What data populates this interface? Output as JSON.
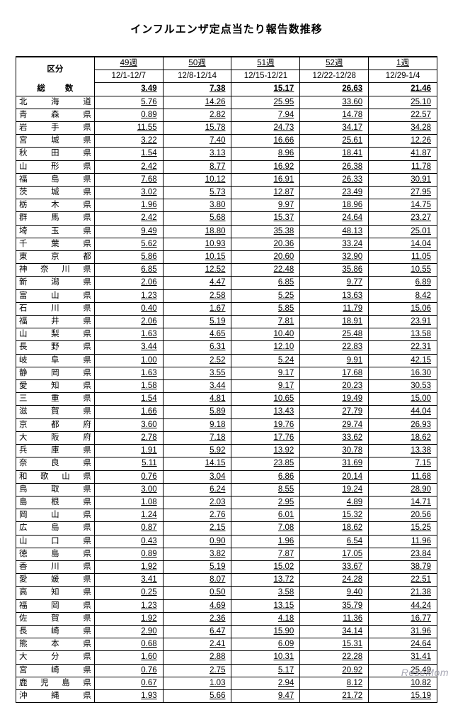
{
  "title": "インフルエンザ定点当たり報告数推移",
  "header": {
    "kubun": "区分",
    "weeks": [
      "49週",
      "50週",
      "51週",
      "52週",
      "1週"
    ],
    "ranges": [
      "12/1-12/7",
      "12/8-12/14",
      "12/15-12/21",
      "12/22-12/28",
      "12/29-1/4"
    ]
  },
  "total": {
    "label_a": "総",
    "label_b": "数",
    "vals": [
      "3.49",
      "7.38",
      "15.17",
      "26.63",
      "21.46"
    ]
  },
  "rows": [
    {
      "chars": [
        "北",
        "海",
        "道"
      ],
      "vals": [
        "5.76",
        "14.26",
        "25.95",
        "33.60",
        "25.10"
      ]
    },
    {
      "chars": [
        "青",
        "森",
        "県"
      ],
      "vals": [
        "0.89",
        "2.82",
        "7.94",
        "14.78",
        "22.57"
      ]
    },
    {
      "chars": [
        "岩",
        "手",
        "県"
      ],
      "vals": [
        "11.55",
        "15.78",
        "24.73",
        "34.17",
        "34.28"
      ]
    },
    {
      "chars": [
        "宮",
        "城",
        "県"
      ],
      "vals": [
        "3.22",
        "7.40",
        "16.66",
        "25.61",
        "12.26"
      ]
    },
    {
      "chars": [
        "秋",
        "田",
        "県"
      ],
      "vals": [
        "1.54",
        "3.13",
        "8.96",
        "18.41",
        "41.87"
      ]
    },
    {
      "chars": [
        "山",
        "形",
        "県"
      ],
      "vals": [
        "2.42",
        "8.77",
        "16.92",
        "26.38",
        "11.78"
      ]
    },
    {
      "chars": [
        "福",
        "島",
        "県"
      ],
      "vals": [
        "7.68",
        "10.12",
        "16.91",
        "26.33",
        "30.91"
      ]
    },
    {
      "chars": [
        "茨",
        "城",
        "県"
      ],
      "vals": [
        "3.02",
        "5.73",
        "12.87",
        "23.49",
        "27.95"
      ]
    },
    {
      "chars": [
        "栃",
        "木",
        "県"
      ],
      "vals": [
        "1.96",
        "3.80",
        "9.97",
        "18.96",
        "14.75"
      ]
    },
    {
      "chars": [
        "群",
        "馬",
        "県"
      ],
      "vals": [
        "2.42",
        "5.68",
        "15.37",
        "24.64",
        "23.27"
      ]
    },
    {
      "chars": [
        "埼",
        "玉",
        "県"
      ],
      "vals": [
        "9.49",
        "18.80",
        "35.38",
        "48.13",
        "25.01"
      ]
    },
    {
      "chars": [
        "千",
        "葉",
        "県"
      ],
      "vals": [
        "5.62",
        "10.93",
        "20.36",
        "33.24",
        "14.04"
      ]
    },
    {
      "chars": [
        "東",
        "京",
        "都"
      ],
      "vals": [
        "5.86",
        "10.15",
        "20.60",
        "32.90",
        "11.05"
      ]
    },
    {
      "chars": [
        "神",
        "奈",
        "川",
        "県"
      ],
      "vals": [
        "6.85",
        "12.52",
        "22.48",
        "35.86",
        "10.55"
      ]
    },
    {
      "chars": [
        "新",
        "潟",
        "県"
      ],
      "vals": [
        "2.06",
        "4.47",
        "6.85",
        "9.77",
        "6.89"
      ]
    },
    {
      "chars": [
        "富",
        "山",
        "県"
      ],
      "vals": [
        "1.23",
        "2.58",
        "5.25",
        "13.63",
        "8.42"
      ]
    },
    {
      "chars": [
        "石",
        "川",
        "県"
      ],
      "vals": [
        "0.40",
        "1.67",
        "5.85",
        "11.79",
        "15.06"
      ]
    },
    {
      "chars": [
        "福",
        "井",
        "県"
      ],
      "vals": [
        "2.06",
        "5.19",
        "7.81",
        "18.91",
        "23.91"
      ]
    },
    {
      "chars": [
        "山",
        "梨",
        "県"
      ],
      "vals": [
        "1.63",
        "4.65",
        "10.40",
        "25.48",
        "13.58"
      ]
    },
    {
      "chars": [
        "長",
        "野",
        "県"
      ],
      "vals": [
        "3.44",
        "6.31",
        "12.10",
        "22.83",
        "22.31"
      ]
    },
    {
      "chars": [
        "岐",
        "阜",
        "県"
      ],
      "vals": [
        "1.00",
        "2.52",
        "5.24",
        "9.91",
        "42.15"
      ]
    },
    {
      "chars": [
        "静",
        "岡",
        "県"
      ],
      "vals": [
        "1.63",
        "3.55",
        "9.17",
        "17.68",
        "16.30"
      ]
    },
    {
      "chars": [
        "愛",
        "知",
        "県"
      ],
      "vals": [
        "1.58",
        "3.44",
        "9.17",
        "20.23",
        "30.53"
      ]
    },
    {
      "chars": [
        "三",
        "重",
        "県"
      ],
      "vals": [
        "1.54",
        "4.81",
        "10.65",
        "19.49",
        "15.00"
      ]
    },
    {
      "chars": [
        "滋",
        "賀",
        "県"
      ],
      "vals": [
        "1.66",
        "5.89",
        "13.43",
        "27.79",
        "44.04"
      ]
    },
    {
      "chars": [
        "京",
        "都",
        "府"
      ],
      "vals": [
        "3.60",
        "9.18",
        "19.76",
        "29.74",
        "26.93"
      ]
    },
    {
      "chars": [
        "大",
        "阪",
        "府"
      ],
      "vals": [
        "2.78",
        "7.18",
        "17.76",
        "33.62",
        "18.62"
      ]
    },
    {
      "chars": [
        "兵",
        "庫",
        "県"
      ],
      "vals": [
        "1.91",
        "5.92",
        "13.92",
        "30.78",
        "13.38"
      ]
    },
    {
      "chars": [
        "奈",
        "良",
        "県"
      ],
      "vals": [
        "5.11",
        "14.15",
        "23.85",
        "31.69",
        "7.15"
      ]
    },
    {
      "chars": [
        "和",
        "歌",
        "山",
        "県"
      ],
      "vals": [
        "0.76",
        "3.04",
        "6.86",
        "20.14",
        "11.68"
      ]
    },
    {
      "chars": [
        "鳥",
        "取",
        "県"
      ],
      "vals": [
        "3.00",
        "6.24",
        "8.55",
        "19.24",
        "28.90"
      ]
    },
    {
      "chars": [
        "島",
        "根",
        "県"
      ],
      "vals": [
        "1.08",
        "2.03",
        "2.95",
        "4.89",
        "14.71"
      ]
    },
    {
      "chars": [
        "岡",
        "山",
        "県"
      ],
      "vals": [
        "1.24",
        "2.76",
        "6.01",
        "15.32",
        "20.56"
      ]
    },
    {
      "chars": [
        "広",
        "島",
        "県"
      ],
      "vals": [
        "0.87",
        "2.15",
        "7.08",
        "18.62",
        "15.25"
      ]
    },
    {
      "chars": [
        "山",
        "口",
        "県"
      ],
      "vals": [
        "0.43",
        "0.90",
        "1.96",
        "6.54",
        "11.96"
      ]
    },
    {
      "chars": [
        "徳",
        "島",
        "県"
      ],
      "vals": [
        "0.89",
        "3.82",
        "7.87",
        "17.05",
        "23.84"
      ]
    },
    {
      "chars": [
        "香",
        "川",
        "県"
      ],
      "vals": [
        "1.92",
        "5.19",
        "15.02",
        "33.67",
        "38.79"
      ]
    },
    {
      "chars": [
        "愛",
        "媛",
        "県"
      ],
      "vals": [
        "3.41",
        "8.07",
        "13.72",
        "24.28",
        "22.51"
      ]
    },
    {
      "chars": [
        "高",
        "知",
        "県"
      ],
      "vals": [
        "0.25",
        "0.50",
        "3.58",
        "9.40",
        "21.38"
      ]
    },
    {
      "chars": [
        "福",
        "岡",
        "県"
      ],
      "vals": [
        "1.23",
        "4.69",
        "13.15",
        "35.79",
        "44.24"
      ]
    },
    {
      "chars": [
        "佐",
        "賀",
        "県"
      ],
      "vals": [
        "1.92",
        "2.36",
        "4.18",
        "11.36",
        "16.77"
      ]
    },
    {
      "chars": [
        "長",
        "崎",
        "県"
      ],
      "vals": [
        "2.90",
        "6.47",
        "15.90",
        "34.14",
        "31.96"
      ]
    },
    {
      "chars": [
        "熊",
        "本",
        "県"
      ],
      "vals": [
        "0.68",
        "2.41",
        "6.09",
        "15.31",
        "24.64"
      ]
    },
    {
      "chars": [
        "大",
        "分",
        "県"
      ],
      "vals": [
        "1.60",
        "2.88",
        "10.31",
        "22.28",
        "31.41"
      ]
    },
    {
      "chars": [
        "宮",
        "崎",
        "県"
      ],
      "vals": [
        "0.76",
        "2.75",
        "5.17",
        "20.92",
        "25.49"
      ]
    },
    {
      "chars": [
        "鹿",
        "児",
        "島",
        "県"
      ],
      "vals": [
        "0.67",
        "1.03",
        "2.94",
        "8.12",
        "10.82"
      ]
    },
    {
      "chars": [
        "沖",
        "縄",
        "県"
      ],
      "vals": [
        "1.93",
        "5.66",
        "9.47",
        "21.72",
        "15.19"
      ]
    }
  ],
  "watermark": "ReseMom"
}
